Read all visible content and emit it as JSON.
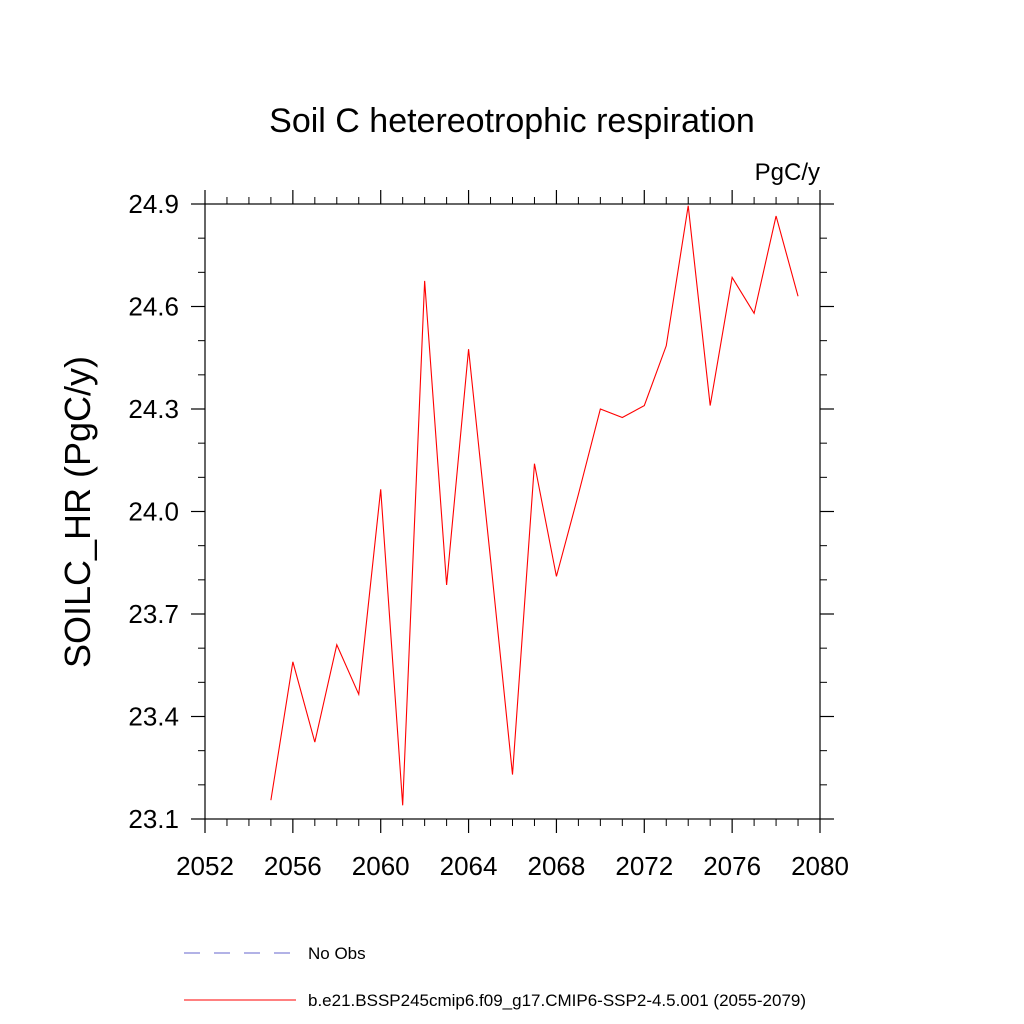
{
  "chart_data": {
    "type": "line",
    "title": "Soil C hetereotrophic respiration",
    "units": "PgC/y",
    "ylabel": "SOILC_HR  (PgC/y)",
    "xlim": [
      2052,
      2080
    ],
    "ylim": [
      23.1,
      24.9
    ],
    "xticks": [
      2052,
      2056,
      2060,
      2064,
      2068,
      2072,
      2076,
      2080
    ],
    "xtick_labels": [
      "2052",
      "2056",
      "2060",
      "2064",
      "2068",
      "2072",
      "2076",
      "2080"
    ],
    "yticks": [
      23.1,
      23.4,
      23.7,
      24.0,
      24.3,
      24.6,
      24.9
    ],
    "ytick_labels": [
      "23.1",
      "23.4",
      "23.7",
      "24.0",
      "24.3",
      "24.6",
      "24.9"
    ],
    "grid": false,
    "legend_position": "bottom",
    "series": [
      {
        "name": "b.e21.BSSP245cmip6.f09_g17.CMIP6-SSP2-4.5.001 (2055-2079)",
        "color": "#ff0000",
        "style": "solid",
        "x": [
          2055,
          2056,
          2057,
          2058,
          2059,
          2060,
          2061,
          2062,
          2063,
          2064,
          2065,
          2066,
          2067,
          2068,
          2069,
          2070,
          2071,
          2072,
          2073,
          2074,
          2075,
          2076,
          2077,
          2078,
          2079
        ],
        "values": [
          23.155,
          23.56,
          23.325,
          23.61,
          23.465,
          24.065,
          23.14,
          24.675,
          23.785,
          24.475,
          23.86,
          23.23,
          24.14,
          23.81,
          24.05,
          24.3,
          24.275,
          24.31,
          24.485,
          24.895,
          24.31,
          24.685,
          24.58,
          24.865,
          24.63
        ]
      }
    ],
    "legend": [
      {
        "label": "No Obs",
        "color": "#6666cc",
        "style": "dashed"
      },
      {
        "label": "b.e21.BSSP245cmip6.f09_g17.CMIP6-SSP2-4.5.001 (2055-2079)",
        "color": "#ff0000",
        "style": "solid"
      }
    ]
  }
}
